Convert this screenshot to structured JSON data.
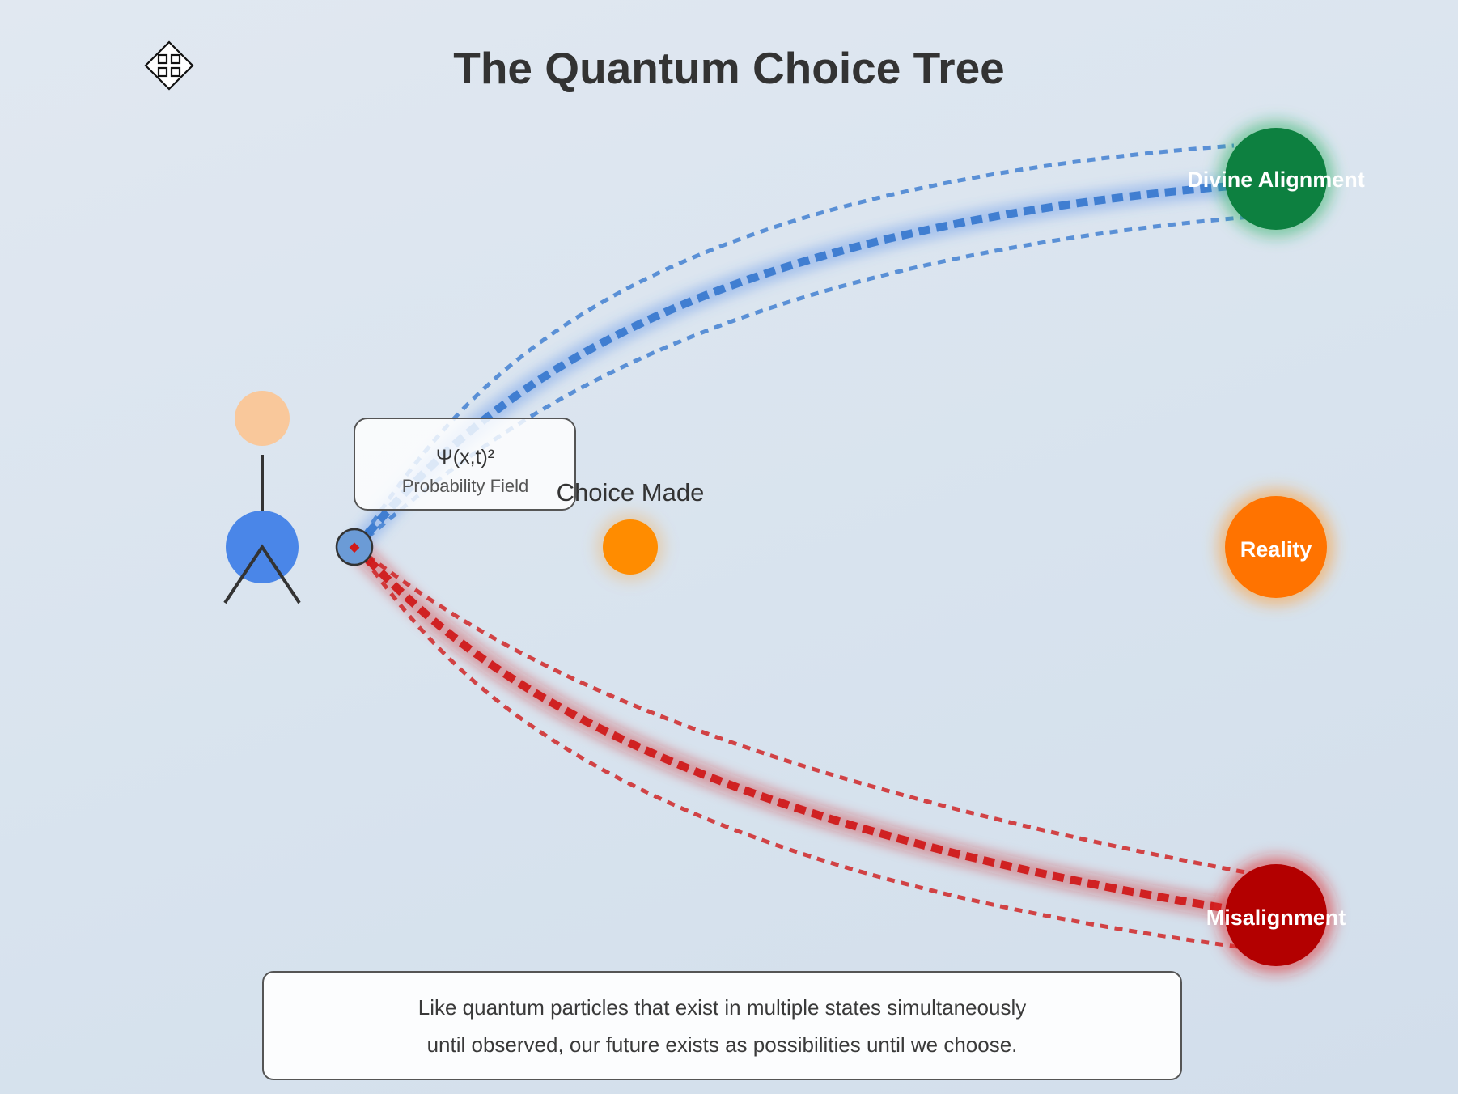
{
  "title": "The Quantum Choice Tree",
  "toolbar": {
    "move_icon": "move-arrows-icon"
  },
  "probability_box": {
    "formula": "Ψ(x,t)²",
    "label": "Probability Field"
  },
  "choice_label": "Choice Made",
  "outcomes": {
    "divine": {
      "label": "Divine Alignment",
      "color": "#0d8040"
    },
    "reality": {
      "label": "Reality",
      "color": "#ff7300"
    },
    "misalignment": {
      "label": "Misalignment",
      "color": "#b30000"
    }
  },
  "caption": {
    "line1": "Like quantum particles that exist in multiple states simultaneously",
    "line2": "until observed, our future exists as possibilities until we choose."
  },
  "colors": {
    "path_blue": "#3a7ad0",
    "path_red": "#d01a1a",
    "person_body": "#4a86e8",
    "person_head": "#f9c89b",
    "choice_dot": "#ff8c00"
  }
}
